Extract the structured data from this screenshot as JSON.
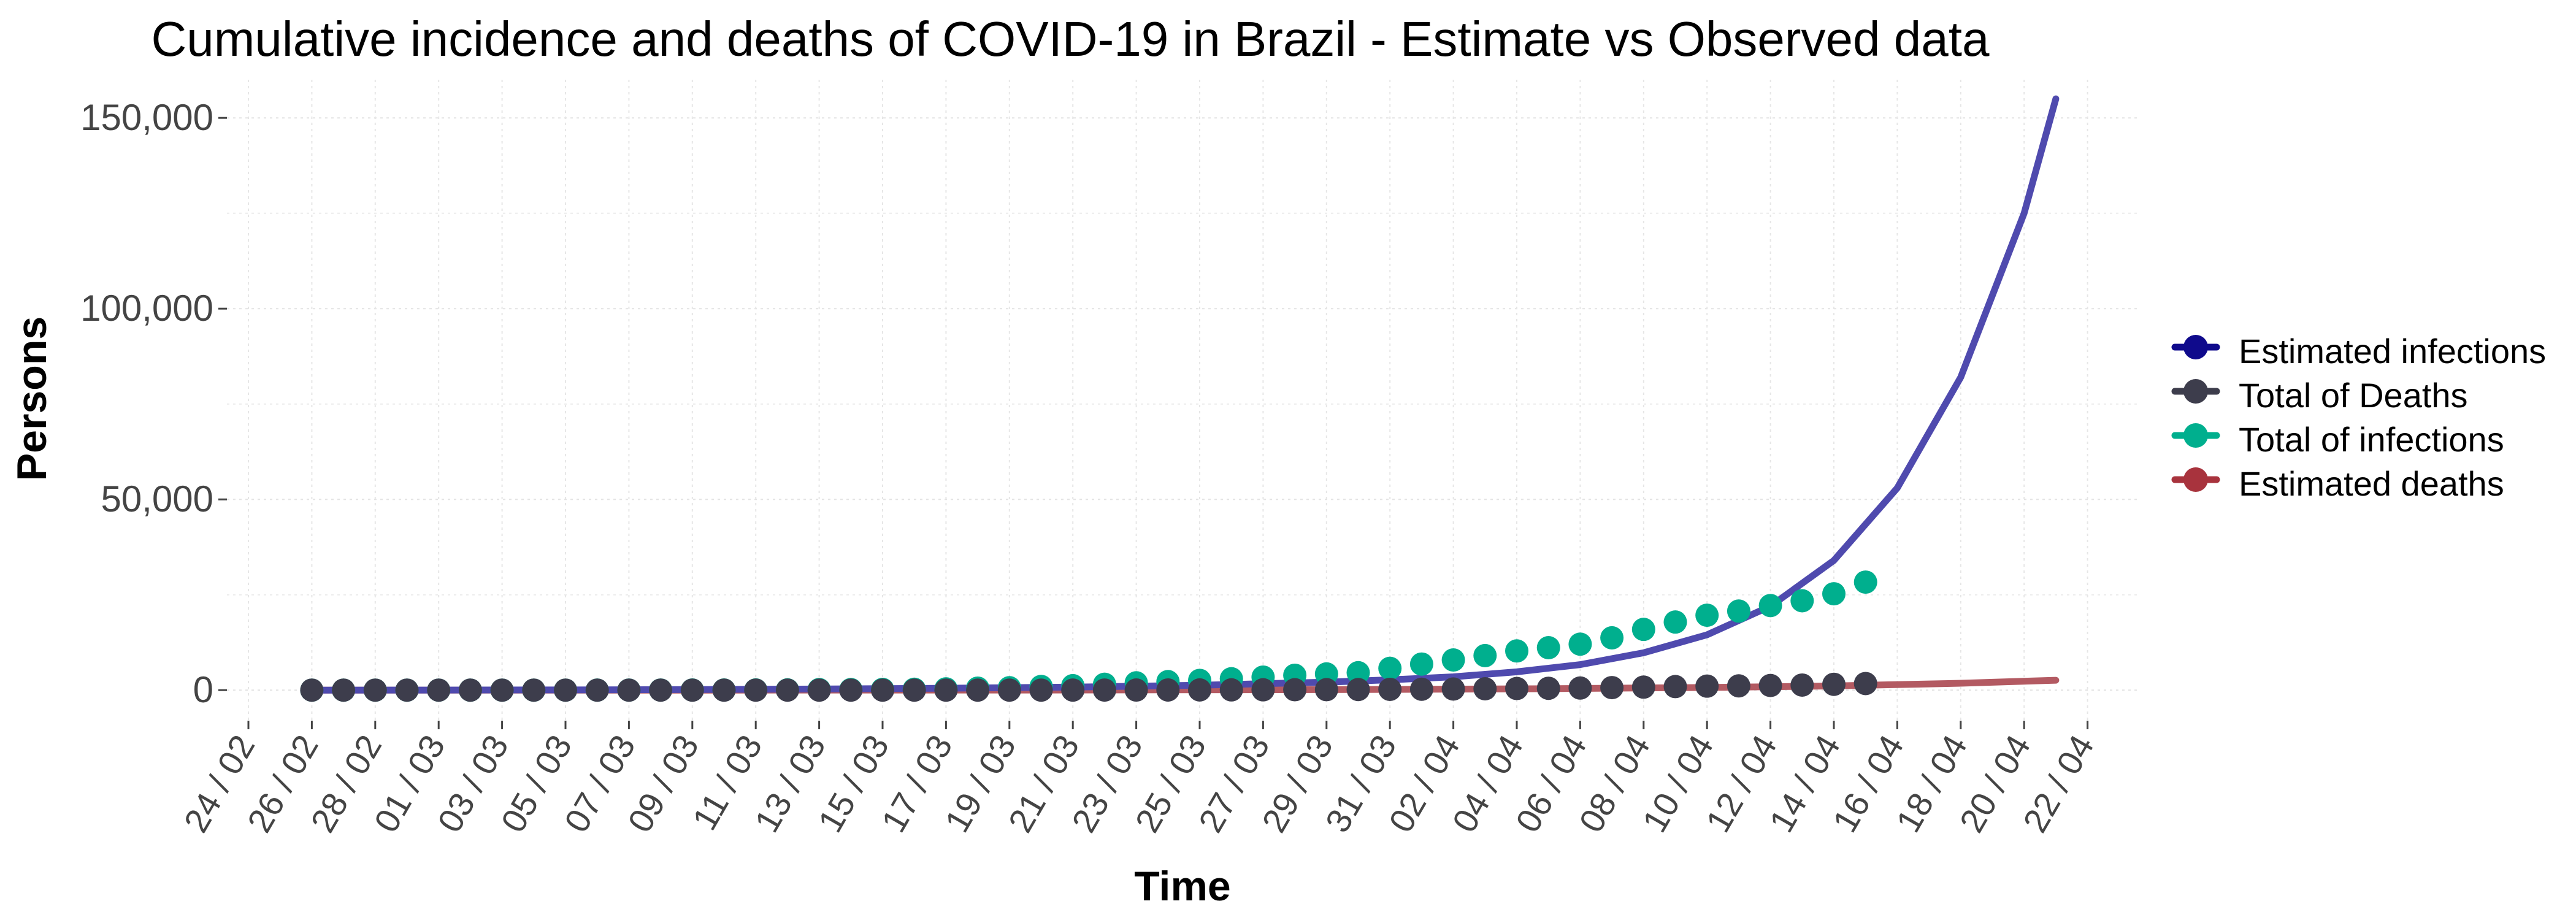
{
  "chart_data": {
    "type": "line",
    "title": "Cumulative incidence and deaths of COVID-19 in Brazil - Estimate vs Observed data",
    "xlabel": "Time",
    "ylabel": "Persons",
    "x_tick_labels": [
      "24 / 02",
      "26 / 02",
      "28 / 02",
      "01 / 03",
      "03 / 03",
      "05 / 03",
      "07 / 03",
      "09 / 03",
      "11 / 03",
      "13 / 03",
      "15 / 03",
      "17 / 03",
      "19 / 03",
      "21 / 03",
      "23 / 03",
      "25 / 03",
      "27 / 03",
      "29 / 03",
      "31 / 03",
      "02 / 04",
      "04 / 04",
      "06 / 04",
      "08 / 04",
      "10 / 04",
      "12 / 04",
      "14 / 04",
      "16 / 04",
      "18 / 04",
      "20 / 04",
      "22 / 04"
    ],
    "y_tick_labels": [
      "0",
      "50,000",
      "100,000",
      "150,000"
    ],
    "ylim": [
      -8000,
      160000
    ],
    "grid": true,
    "legend_position": "right",
    "series": [
      {
        "name": "Estimated infections",
        "type": "line",
        "color": "#4F4AAE",
        "x": [
          "2020-02-26",
          "2020-03-01",
          "2020-03-05",
          "2020-03-09",
          "2020-03-13",
          "2020-03-17",
          "2020-03-21",
          "2020-03-25",
          "2020-03-29",
          "2020-03-31",
          "2020-04-02",
          "2020-04-04",
          "2020-04-06",
          "2020-04-08",
          "2020-04-10",
          "2020-04-12",
          "2020-04-14",
          "2020-04-16",
          "2020-04-18",
          "2020-04-20",
          "2020-04-21"
        ],
        "y": [
          0,
          20,
          60,
          150,
          300,
          500,
          800,
          1300,
          2100,
          2700,
          3500,
          4800,
          6700,
          9800,
          14500,
          22000,
          34000,
          53000,
          82000,
          125000,
          155000
        ]
      },
      {
        "name": "Total of Deaths",
        "type": "points",
        "color": "#3D3D4C",
        "x": [
          "2020-02-26",
          "2020-02-27",
          "2020-02-28",
          "2020-02-29",
          "2020-03-01",
          "2020-03-02",
          "2020-03-03",
          "2020-03-04",
          "2020-03-05",
          "2020-03-06",
          "2020-03-07",
          "2020-03-08",
          "2020-03-09",
          "2020-03-10",
          "2020-03-11",
          "2020-03-12",
          "2020-03-13",
          "2020-03-14",
          "2020-03-15",
          "2020-03-16",
          "2020-03-17",
          "2020-03-18",
          "2020-03-19",
          "2020-03-20",
          "2020-03-21",
          "2020-03-22",
          "2020-03-23",
          "2020-03-24",
          "2020-03-25",
          "2020-03-26",
          "2020-03-27",
          "2020-03-28",
          "2020-03-29",
          "2020-03-30",
          "2020-03-31",
          "2020-04-01",
          "2020-04-02",
          "2020-04-03",
          "2020-04-04",
          "2020-04-05",
          "2020-04-06",
          "2020-04-07",
          "2020-04-08",
          "2020-04-09",
          "2020-04-10",
          "2020-04-11",
          "2020-04-12",
          "2020-04-13",
          "2020-04-14",
          "2020-04-15"
        ],
        "y": [
          0,
          0,
          0,
          0,
          0,
          0,
          0,
          0,
          0,
          0,
          0,
          0,
          0,
          0,
          0,
          0,
          0,
          0,
          0,
          0,
          0,
          0,
          3,
          7,
          18,
          25,
          34,
          46,
          59,
          77,
          92,
          111,
          136,
          159,
          201,
          240,
          299,
          359,
          432,
          486,
          553,
          667,
          800,
          941,
          1056,
          1124,
          1223,
          1328,
          1532,
          1736
        ]
      },
      {
        "name": "Total of infections",
        "type": "points",
        "color": "#00AF8E",
        "x": [
          "2020-02-26",
          "2020-02-27",
          "2020-02-28",
          "2020-02-29",
          "2020-03-01",
          "2020-03-02",
          "2020-03-03",
          "2020-03-04",
          "2020-03-05",
          "2020-03-06",
          "2020-03-07",
          "2020-03-08",
          "2020-03-09",
          "2020-03-10",
          "2020-03-11",
          "2020-03-12",
          "2020-03-13",
          "2020-03-14",
          "2020-03-15",
          "2020-03-16",
          "2020-03-17",
          "2020-03-18",
          "2020-03-19",
          "2020-03-20",
          "2020-03-21",
          "2020-03-22",
          "2020-03-23",
          "2020-03-24",
          "2020-03-25",
          "2020-03-26",
          "2020-03-27",
          "2020-03-28",
          "2020-03-29",
          "2020-03-30",
          "2020-03-31",
          "2020-04-01",
          "2020-04-02",
          "2020-04-03",
          "2020-04-04",
          "2020-04-05",
          "2020-04-06",
          "2020-04-07",
          "2020-04-08",
          "2020-04-09",
          "2020-04-10",
          "2020-04-11",
          "2020-04-12",
          "2020-04-13",
          "2020-04-14",
          "2020-04-15"
        ],
        "y": [
          1,
          1,
          1,
          2,
          2,
          2,
          2,
          3,
          8,
          13,
          19,
          25,
          30,
          34,
          52,
          77,
          151,
          151,
          200,
          234,
          346,
          529,
          640,
          970,
          1178,
          1546,
          1924,
          2247,
          2554,
          2985,
          3417,
          3904,
          4256,
          4579,
          5717,
          6836,
          7910,
          9056,
          10278,
          11130,
          12056,
          13717,
          15927,
          17857,
          19638,
          20727,
          22169,
          23430,
          25262,
          28320
        ]
      },
      {
        "name": "Estimated deaths",
        "type": "line",
        "color": "#B35A62",
        "x": [
          "2020-02-26",
          "2020-03-10",
          "2020-03-20",
          "2020-03-30",
          "2020-04-05",
          "2020-04-10",
          "2020-04-14",
          "2020-04-18",
          "2020-04-21"
        ],
        "y": [
          0,
          0,
          30,
          150,
          380,
          700,
          1100,
          1800,
          2600
        ]
      }
    ]
  }
}
